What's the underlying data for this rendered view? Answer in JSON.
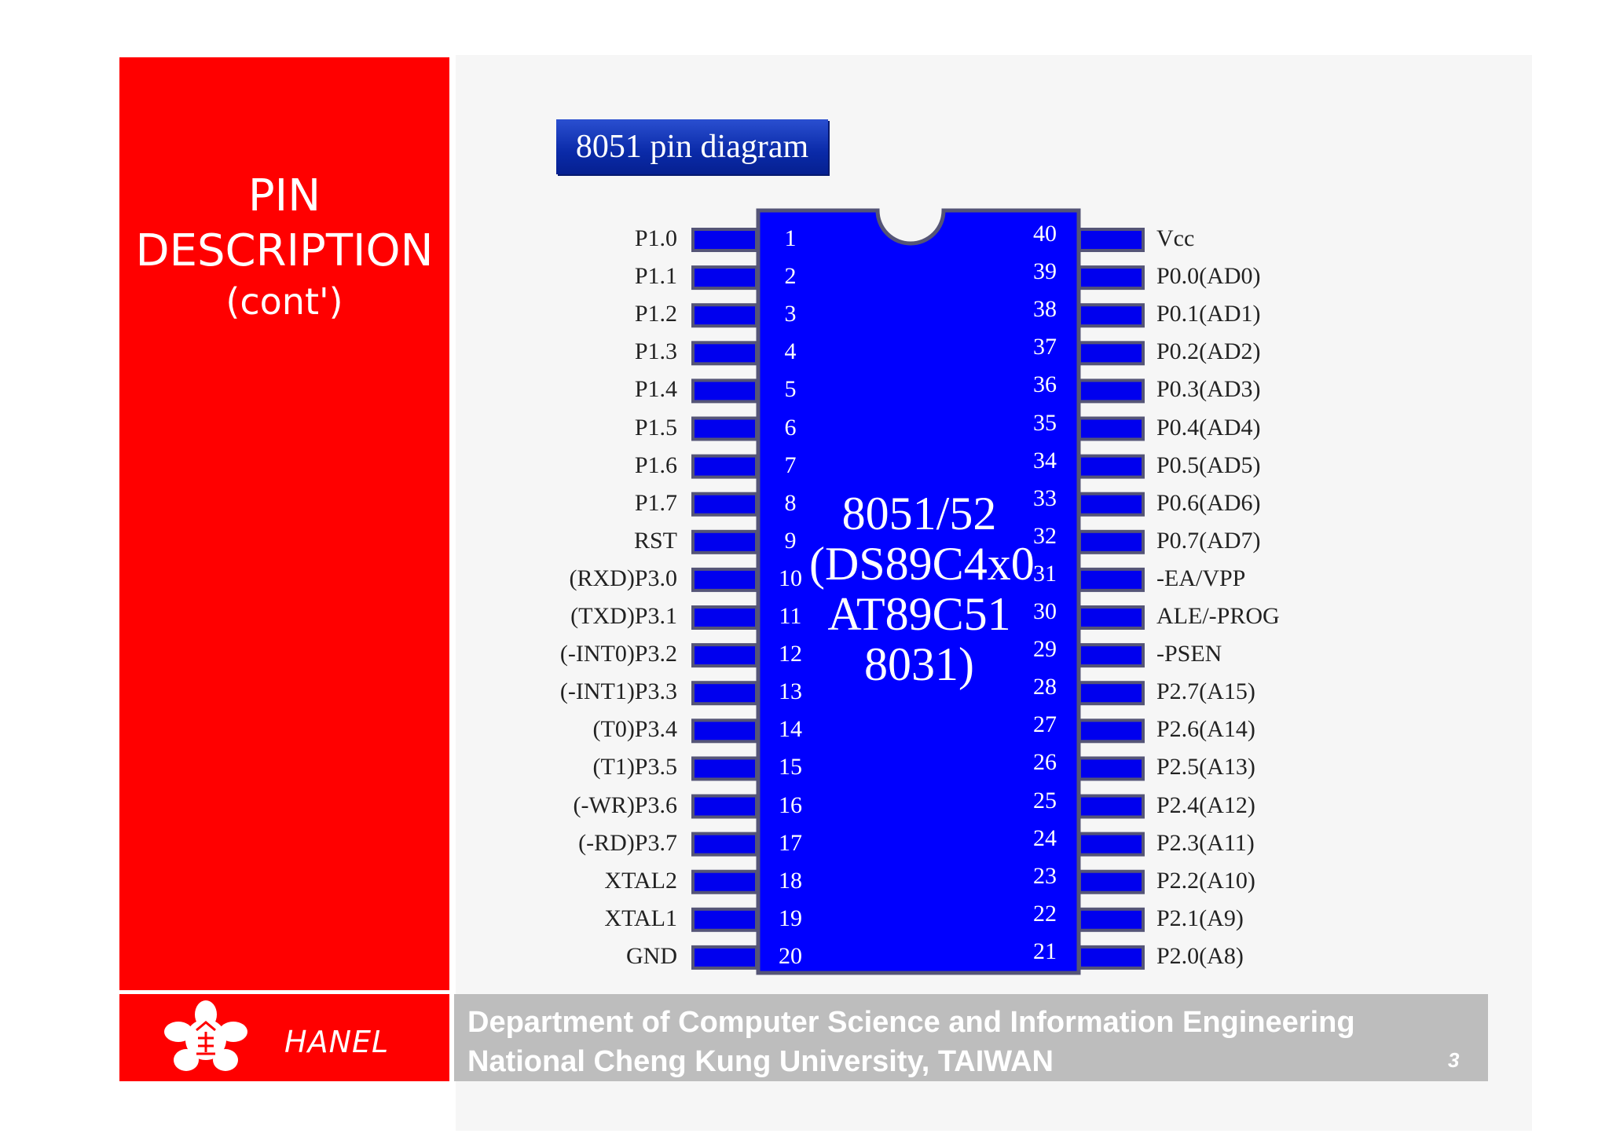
{
  "sidebar": {
    "title_line1": "PIN",
    "title_line2": "DESCRIPTION",
    "title_line3": "(cont')"
  },
  "footer": {
    "brand": "HANEL",
    "dept_line1": "Department of Computer Science and Information Engineering",
    "dept_line2": "National Cheng Kung University, TAIWAN",
    "page_number": "3"
  },
  "diagram": {
    "title": "8051 pin diagram",
    "chip_name": [
      "8051/52",
      "(DS89C4x0",
      "AT89C51",
      "8031)"
    ],
    "left_pins": [
      {
        "num": "1",
        "label": "P1.0"
      },
      {
        "num": "2",
        "label": "P1.1"
      },
      {
        "num": "3",
        "label": "P1.2"
      },
      {
        "num": "4",
        "label": "P1.3"
      },
      {
        "num": "5",
        "label": "P1.4"
      },
      {
        "num": "6",
        "label": "P1.5"
      },
      {
        "num": "7",
        "label": "P1.6"
      },
      {
        "num": "8",
        "label": "P1.7"
      },
      {
        "num": "9",
        "label": "RST"
      },
      {
        "num": "10",
        "label": "(RXD)P3.0"
      },
      {
        "num": "11",
        "label": "(TXD)P3.1"
      },
      {
        "num": "12",
        "label": "(-INT0)P3.2"
      },
      {
        "num": "13",
        "label": "(-INT1)P3.3"
      },
      {
        "num": "14",
        "label": "(T0)P3.4"
      },
      {
        "num": "15",
        "label": "(T1)P3.5"
      },
      {
        "num": "16",
        "label": "(-WR)P3.6"
      },
      {
        "num": "17",
        "label": "(-RD)P3.7"
      },
      {
        "num": "18",
        "label": "XTAL2"
      },
      {
        "num": "19",
        "label": "XTAL1"
      },
      {
        "num": "20",
        "label": "GND"
      }
    ],
    "right_pins": [
      {
        "num": "40",
        "label": "Vcc"
      },
      {
        "num": "39",
        "label": "P0.0(AD0)"
      },
      {
        "num": "38",
        "label": "P0.1(AD1)"
      },
      {
        "num": "37",
        "label": "P0.2(AD2)"
      },
      {
        "num": "36",
        "label": "P0.3(AD3)"
      },
      {
        "num": "35",
        "label": "P0.4(AD4)"
      },
      {
        "num": "34",
        "label": "P0.5(AD5)"
      },
      {
        "num": "33",
        "label": "P0.6(AD6)"
      },
      {
        "num": "32",
        "label": "P0.7(AD7)"
      },
      {
        "num": "31",
        "label": "-EA/VPP"
      },
      {
        "num": "30",
        "label": "ALE/-PROG"
      },
      {
        "num": "29",
        "label": "-PSEN"
      },
      {
        "num": "28",
        "label": "P2.7(A15)"
      },
      {
        "num": "27",
        "label": "P2.6(A14)"
      },
      {
        "num": "26",
        "label": "P2.5(A13)"
      },
      {
        "num": "25",
        "label": "P2.4(A12)"
      },
      {
        "num": "24",
        "label": "P2.3(A11)"
      },
      {
        "num": "23",
        "label": "P2.2(A10)"
      },
      {
        "num": "22",
        "label": "P2.1(A9)"
      },
      {
        "num": "21",
        "label": "P2.0(A8)"
      }
    ]
  },
  "colors": {
    "chip_blue": "#0000ff",
    "pin_blue": "#0000ee",
    "chip_border": "#555577",
    "accent_red": "#ff0000",
    "footer_grey": "#bdbdbd"
  }
}
